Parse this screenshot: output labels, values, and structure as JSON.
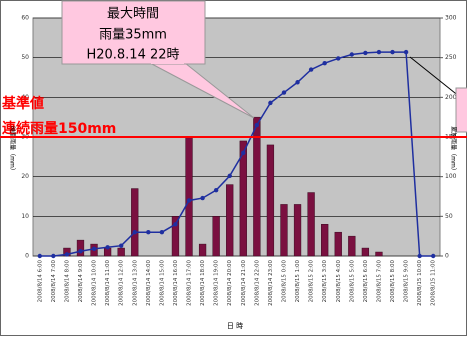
{
  "chart_data": {
    "type": "bar_line",
    "categories": [
      "2008/8/14 6:00",
      "2008/8/14 7:00",
      "2008/8/14 8:00",
      "2008/8/14 9:00",
      "2008/8/14 10:00",
      "2008/8/14 11:00",
      "2008/8/14 12:00",
      "2008/8/14 13:00",
      "2008/8/14 14:00",
      "2008/8/14 15:00",
      "2008/8/14 16:00",
      "2008/8/14 17:00",
      "2008/8/14 18:00",
      "2008/8/14 19:00",
      "2008/8/14 20:00",
      "2008/8/14 21:00",
      "2008/8/14 22:00",
      "2008/8/14 23:00",
      "2008/8/15 0:00",
      "2008/8/15 1:00",
      "2008/8/15 2:00",
      "2008/8/15 3:00",
      "2008/8/15 4:00",
      "2008/8/15 5:00",
      "2008/8/15 6:00",
      "2008/8/15 7:00",
      "2008/8/15 8:00",
      "2008/8/15 9:00",
      "2008/8/15 10:00",
      "2008/8/15 11:00"
    ],
    "series": [
      {
        "color": "#7a1040",
        "values": [
          0,
          0,
          2,
          4,
          3,
          2,
          2,
          17,
          0,
          0,
          10,
          30,
          3,
          10,
          18,
          29,
          35,
          28,
          13,
          13,
          16,
          8,
          6,
          5,
          2,
          1,
          0,
          0,
          0,
          0
        ]
      },
      {
        "color": "#1f2fa0",
        "axis": "y2",
        "values": [
          0,
          0,
          2,
          6,
          9,
          11,
          13,
          30,
          30,
          30,
          40,
          70,
          73,
          83,
          101,
          130,
          165,
          193,
          206,
          219,
          235,
          243,
          249,
          254,
          256,
          257,
          257,
          257,
          0,
          0
        ]
      }
    ],
    "ylim": [
      0,
      60
    ],
    "yticks": [
      0,
      10,
      20,
      30,
      40,
      50,
      60
    ],
    "y2lim": [
      0,
      300
    ],
    "y2ticks": [
      0,
      50,
      100,
      150,
      200,
      250,
      300
    ],
    "ylabel": "時間雨量（mm）",
    "y2label": "累加雨量（mm）",
    "xlabel": "日 時",
    "grid": true,
    "callout": [
      "最大時間",
      "雨量35mm",
      "H20.8.14 22時"
    ],
    "threshold": {
      "lines": [
        "基準値",
        "連続雨量150mm"
      ],
      "value": 150,
      "axis": "y2",
      "color": "#ff0000"
    }
  }
}
